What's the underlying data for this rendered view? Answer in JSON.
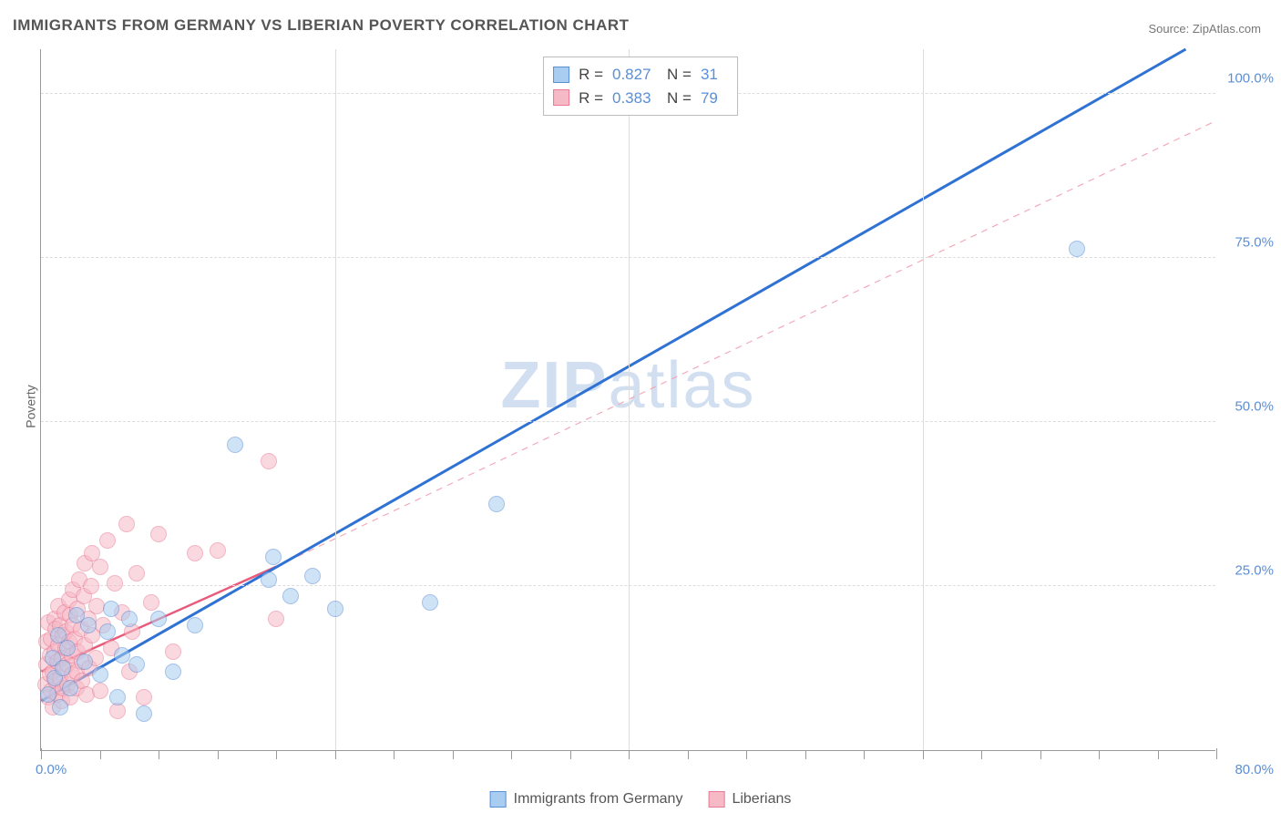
{
  "title": "IMMIGRANTS FROM GERMANY VS LIBERIAN POVERTY CORRELATION CHART",
  "source_prefix": "Source: ",
  "source_name": "ZipAtlas.com",
  "ylabel": "Poverty",
  "watermark": "ZIPatlas",
  "chart": {
    "type": "scatter",
    "xlim": [
      0,
      80
    ],
    "ylim": [
      0,
      107
    ],
    "x_tick_major_step": 20,
    "x_tick_minor_step": 4,
    "y_gridlines": [
      25,
      50,
      75,
      100
    ],
    "x_label_min": "0.0%",
    "x_label_max": "80.0%",
    "y_labels": [
      {
        "v": 25,
        "t": "25.0%"
      },
      {
        "v": 50,
        "t": "50.0%"
      },
      {
        "v": 75,
        "t": "75.0%"
      },
      {
        "v": 100,
        "t": "100.0%"
      }
    ],
    "background_color": "#ffffff",
    "grid_color": "#dddddd",
    "axis_color": "#999999",
    "tick_label_color": "#5a8fd6",
    "marker_radius": 9,
    "series": [
      {
        "name": "Immigrants from Germany",
        "fill": "#a9cdf0",
        "stroke": "#5a8fd6",
        "fill_opacity": 0.55,
        "line_color": "#2f72d4",
        "line_width": 3,
        "line_dash": "none",
        "line": {
          "x1": 0,
          "y1": 7.5,
          "x2": 78,
          "y2": 107
        },
        "R": "0.827",
        "N": "31",
        "points": [
          [
            0.5,
            8.5
          ],
          [
            0.8,
            14
          ],
          [
            0.9,
            11
          ],
          [
            1.2,
            17.5
          ],
          [
            1.3,
            6.5
          ],
          [
            1.5,
            12.5
          ],
          [
            1.8,
            15.5
          ],
          [
            2,
            9.5
          ],
          [
            2.4,
            20.5
          ],
          [
            3,
            13.5
          ],
          [
            3.2,
            19
          ],
          [
            4,
            11.5
          ],
          [
            4.5,
            18
          ],
          [
            4.8,
            21.5
          ],
          [
            5.2,
            8
          ],
          [
            5.5,
            14.5
          ],
          [
            6,
            20
          ],
          [
            6.5,
            13
          ],
          [
            7,
            5.5
          ],
          [
            8,
            20
          ],
          [
            9,
            12
          ],
          [
            10.5,
            19
          ],
          [
            13.2,
            46.5
          ],
          [
            15.5,
            26
          ],
          [
            15.8,
            29.5
          ],
          [
            17,
            23.5
          ],
          [
            18.5,
            26.5
          ],
          [
            20,
            21.5
          ],
          [
            26.5,
            22.5
          ],
          [
            31,
            37.5
          ],
          [
            70.5,
            76.5
          ]
        ]
      },
      {
        "name": "Liberians",
        "fill": "#f6b9c6",
        "stroke": "#e97a94",
        "fill_opacity": 0.55,
        "line_color": "#e85a7a",
        "line_width": 2.5,
        "line_dash": "none",
        "line": {
          "x1": 0,
          "y1": 12,
          "x2": 16,
          "y2": 28
        },
        "dashed_line_color": "#f4a8b8",
        "dashed_line_width": 1.2,
        "dashed_line": {
          "x1": 16,
          "y1": 28,
          "x2": 80,
          "y2": 96
        },
        "R": "0.383",
        "N": "79",
        "points": [
          [
            0.3,
            10
          ],
          [
            0.4,
            13
          ],
          [
            0.4,
            16.5
          ],
          [
            0.5,
            8
          ],
          [
            0.5,
            19.5
          ],
          [
            0.6,
            11.5
          ],
          [
            0.6,
            14.5
          ],
          [
            0.7,
            9
          ],
          [
            0.7,
            17
          ],
          [
            0.8,
            12
          ],
          [
            0.8,
            6.5
          ],
          [
            0.9,
            15
          ],
          [
            0.9,
            20
          ],
          [
            1.0,
            10.5
          ],
          [
            1.0,
            18.5
          ],
          [
            1.1,
            13.5
          ],
          [
            1.1,
            8.5
          ],
          [
            1.2,
            16
          ],
          [
            1.2,
            22
          ],
          [
            1.3,
            11
          ],
          [
            1.3,
            19
          ],
          [
            1.4,
            14
          ],
          [
            1.4,
            7.5
          ],
          [
            1.5,
            17.5
          ],
          [
            1.5,
            9.5
          ],
          [
            1.6,
            12.5
          ],
          [
            1.6,
            21
          ],
          [
            1.7,
            15.5
          ],
          [
            1.7,
            18
          ],
          [
            1.8,
            10
          ],
          [
            1.8,
            13
          ],
          [
            1.9,
            23
          ],
          [
            1.9,
            16.5
          ],
          [
            2.0,
            8
          ],
          [
            2.0,
            20.5
          ],
          [
            2.1,
            11.5
          ],
          [
            2.1,
            14.5
          ],
          [
            2.2,
            19
          ],
          [
            2.2,
            24.5
          ],
          [
            2.3,
            17
          ],
          [
            2.4,
            9.5
          ],
          [
            2.4,
            12
          ],
          [
            2.5,
            21.5
          ],
          [
            2.5,
            15
          ],
          [
            2.6,
            26
          ],
          [
            2.7,
            18.5
          ],
          [
            2.8,
            10.5
          ],
          [
            2.8,
            13.5
          ],
          [
            2.9,
            23.5
          ],
          [
            3.0,
            28.5
          ],
          [
            3.0,
            16
          ],
          [
            3.1,
            8.5
          ],
          [
            3.2,
            20
          ],
          [
            3.3,
            12.5
          ],
          [
            3.4,
            25
          ],
          [
            3.5,
            17.5
          ],
          [
            3.5,
            30
          ],
          [
            3.7,
            14
          ],
          [
            3.8,
            22
          ],
          [
            4.0,
            28
          ],
          [
            4.0,
            9
          ],
          [
            4.2,
            19
          ],
          [
            4.5,
            32
          ],
          [
            4.8,
            15.5
          ],
          [
            5.0,
            25.5
          ],
          [
            5.2,
            6
          ],
          [
            5.5,
            21
          ],
          [
            5.8,
            34.5
          ],
          [
            6.0,
            12
          ],
          [
            6.2,
            18
          ],
          [
            6.5,
            27
          ],
          [
            7.0,
            8
          ],
          [
            7.5,
            22.5
          ],
          [
            8.0,
            33
          ],
          [
            9.0,
            15
          ],
          [
            10.5,
            30
          ],
          [
            12,
            30.5
          ],
          [
            15.5,
            44
          ],
          [
            16,
            20
          ]
        ]
      }
    ]
  },
  "stats_labels": {
    "R": "R =",
    "N": "N ="
  },
  "legend_bottom": [
    {
      "label": "Immigrants from Germany",
      "fill": "#a9cdf0",
      "stroke": "#5a8fd6"
    },
    {
      "label": "Liberians",
      "fill": "#f6b9c6",
      "stroke": "#e97a94"
    }
  ]
}
